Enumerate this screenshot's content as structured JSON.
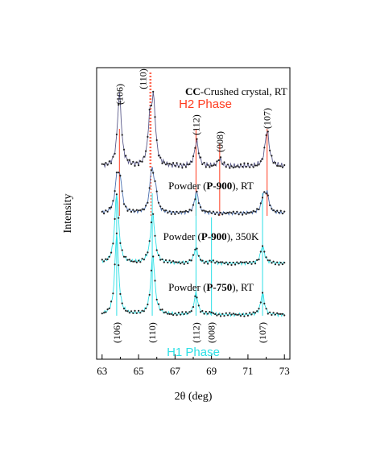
{
  "chart_data": {
    "type": "line",
    "xlabel": "2θ (deg)",
    "ylabel": "Intensity",
    "xlim": [
      62.7,
      73.3
    ],
    "x_ticks": [
      63,
      65,
      67,
      69,
      71,
      73
    ],
    "tick_labels": [
      "63",
      "65",
      "67",
      "69",
      "71",
      "73"
    ],
    "grid": false,
    "phases": {
      "h2": {
        "label": "H2 Phase",
        "color": "#ff3b1f"
      },
      "h1": {
        "label": "H1 Phase",
        "color": "#2de0e6"
      }
    },
    "h2_lines": [
      {
        "hkl": "(106)",
        "x": 63.95
      },
      {
        "hkl": "(110)",
        "x": 65.68
      },
      {
        "hkl": "(112)",
        "x": 68.15
      },
      {
        "hkl": "(008)",
        "x": 69.45
      },
      {
        "hkl": "(107)",
        "x": 72.05
      }
    ],
    "h1_lines": [
      {
        "hkl": "(106)",
        "x": 63.8
      },
      {
        "hkl": "(110)",
        "x": 65.75
      },
      {
        "hkl": "(112)",
        "x": 68.15
      },
      {
        "hkl": "(008)",
        "x": 69.0
      },
      {
        "hkl": "(107)",
        "x": 71.8
      }
    ],
    "series": [
      {
        "label_prefix": "",
        "label_bold": "CC",
        "label_suffix": "-Crushed crystal, RT",
        "line_color": "#5a5a8a",
        "peaks": [
          {
            "x": 63.95,
            "w": 0.13,
            "h": 1.0
          },
          {
            "x": 65.62,
            "w": 0.12,
            "h": 0.55
          },
          {
            "x": 65.82,
            "w": 0.13,
            "h": 0.85
          },
          {
            "x": 68.18,
            "w": 0.13,
            "h": 0.35
          },
          {
            "x": 69.45,
            "w": 0.13,
            "h": 0.1
          },
          {
            "x": 72.05,
            "w": 0.14,
            "h": 0.5
          }
        ]
      },
      {
        "label_prefix": "Powder (",
        "label_bold": "P-900",
        "label_suffix": "), RT",
        "line_color": "#4a6fb0",
        "peaks": [
          {
            "x": 63.82,
            "w": 0.13,
            "h": 0.7
          },
          {
            "x": 64.0,
            "w": 0.12,
            "h": 0.55
          },
          {
            "x": 65.72,
            "w": 0.13,
            "h": 0.85
          },
          {
            "x": 65.92,
            "w": 0.12,
            "h": 0.4
          },
          {
            "x": 68.18,
            "w": 0.13,
            "h": 0.45
          },
          {
            "x": 71.85,
            "w": 0.13,
            "h": 0.32
          },
          {
            "x": 72.05,
            "w": 0.13,
            "h": 0.35
          }
        ]
      },
      {
        "label_prefix": "Powder (",
        "label_bold": "P-900",
        "label_suffix": "), 350K",
        "line_color": "#2de0e6",
        "peaks": [
          {
            "x": 63.8,
            "w": 0.13,
            "h": 1.45
          },
          {
            "x": 65.77,
            "w": 0.14,
            "h": 1.05
          },
          {
            "x": 68.15,
            "w": 0.13,
            "h": 0.32
          },
          {
            "x": 69.0,
            "w": 0.13,
            "h": 0.05
          },
          {
            "x": 71.8,
            "w": 0.13,
            "h": 0.36
          }
        ]
      },
      {
        "label_prefix": "Powder (",
        "label_bold": "P-750",
        "label_suffix": "), RT",
        "line_color": "#2de0e6",
        "peaks": [
          {
            "x": 63.8,
            "w": 0.12,
            "h": 1.7
          },
          {
            "x": 65.78,
            "w": 0.13,
            "h": 1.25
          },
          {
            "x": 68.15,
            "w": 0.12,
            "h": 0.45
          },
          {
            "x": 69.0,
            "w": 0.12,
            "h": 0.04
          },
          {
            "x": 71.8,
            "w": 0.12,
            "h": 0.45
          }
        ]
      }
    ]
  }
}
